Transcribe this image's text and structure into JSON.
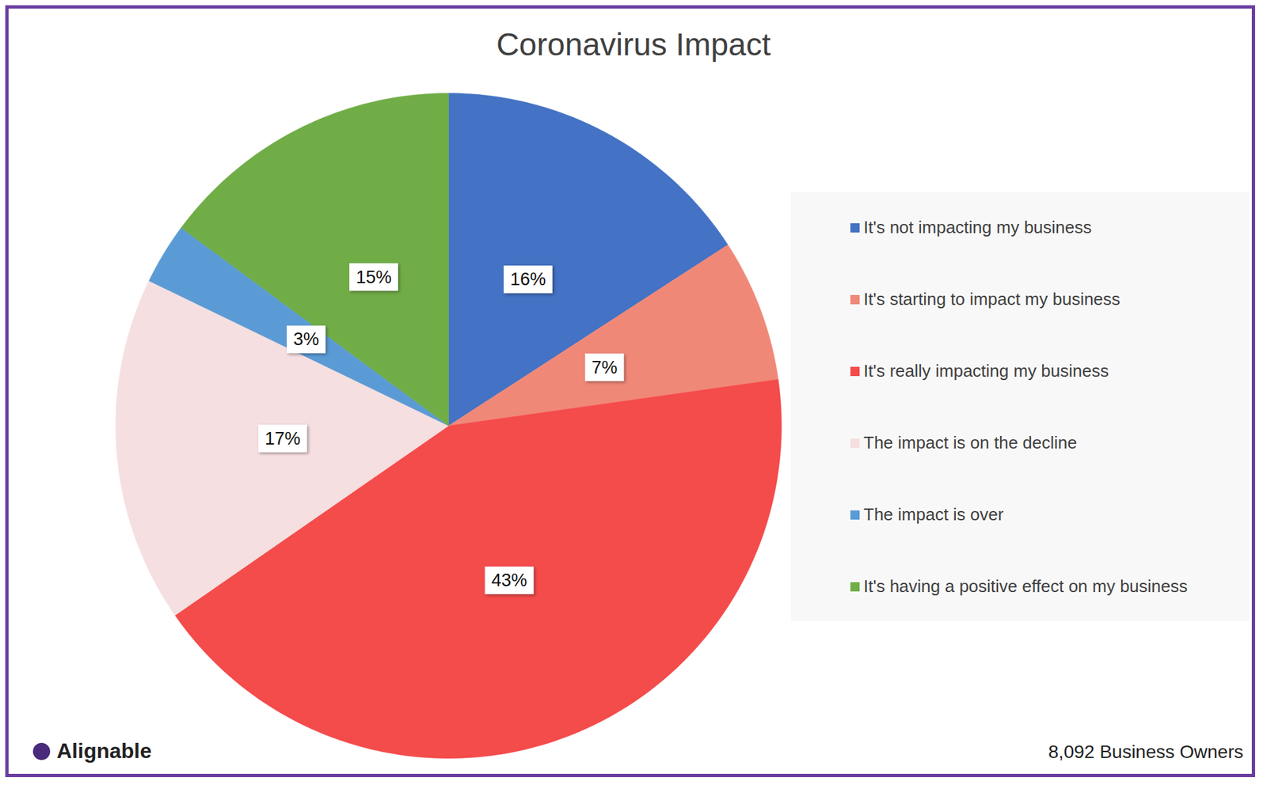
{
  "chart_data": {
    "type": "pie",
    "title": "Coronavirus Impact",
    "categories": [
      "It's not impacting my business",
      "It's starting to impact my business",
      "It's really impacting my business",
      "The impact is on the decline",
      "The impact is over",
      "It's having a positive effect on my business"
    ],
    "values": [
      16,
      7,
      43,
      17,
      3,
      15
    ],
    "value_labels": [
      "16%",
      "7%",
      "43%",
      "17%",
      "3%",
      "15%"
    ],
    "colors": [
      "#4472c4",
      "#f08878",
      "#f44b4b",
      "#f6dfe0",
      "#5b9bd5",
      "#70ad47"
    ],
    "data_labels": true,
    "legend": "right",
    "source": "Alignable",
    "note": "8,092 Business Owners"
  }
}
